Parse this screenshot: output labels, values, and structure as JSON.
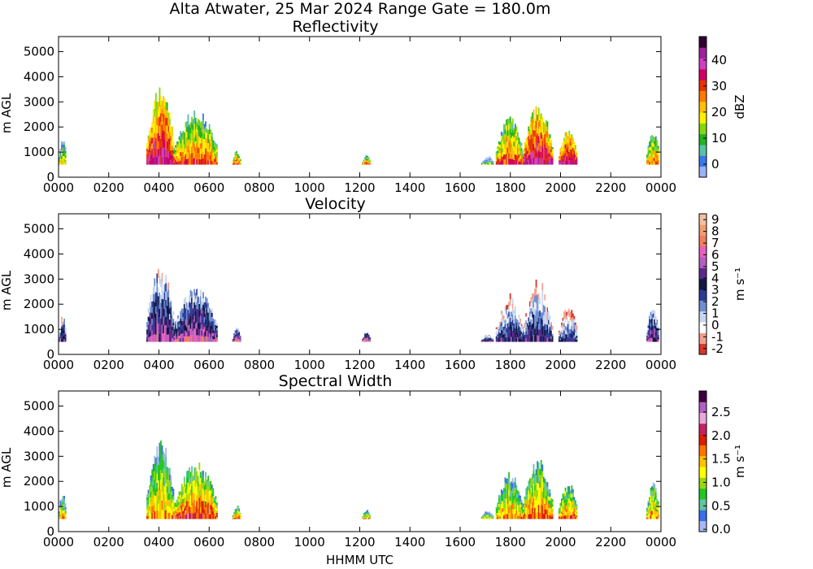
{
  "suptitle": "Alta Atwater, 25 Mar 2024 Range Gate = 180.0m",
  "colors": {
    "reflectivity": [
      "#9bb2f5",
      "#3a78ee",
      "#58c2a2",
      "#22b422",
      "#86d80e",
      "#fff000",
      "#ffc000",
      "#ff7a00",
      "#e83200",
      "#d00064",
      "#d040c0",
      "#a020a0",
      "#300030"
    ],
    "velocity": [
      "#d8382a",
      "#f4a090",
      "#ffffff",
      "#c8d6f0",
      "#6f8fd0",
      "#2b3c95",
      "#101840",
      "#5a2a8a",
      "#b060c0",
      "#e860c0",
      "#f08060",
      "#f0a070",
      "#f4c0a0"
    ],
    "width": [
      "#a8b8f0",
      "#3a70e8",
      "#64c4a0",
      "#22c822",
      "#9ad810",
      "#ffff00",
      "#ffc400",
      "#ff7400",
      "#dc2000",
      "#c82060",
      "#e8a8d8",
      "#b060c0",
      "#400040"
    ]
  },
  "chart_data": [
    {
      "type": "heatmap",
      "title": "Reflectivity",
      "xlabel": "",
      "ylabel": "m AGL",
      "xlim": [
        0,
        1440
      ],
      "ylim": [
        0,
        5600
      ],
      "x_ticks": [
        "0000",
        "0200",
        "0400",
        "0600",
        "0800",
        "1000",
        "1200",
        "1400",
        "1600",
        "1800",
        "2000",
        "2200",
        "0000"
      ],
      "y_ticks": [
        0,
        1000,
        2000,
        3000,
        4000,
        5000
      ],
      "colorbar": {
        "label": "dBZ",
        "range": [
          -5,
          49
        ],
        "ticks": [
          "0",
          "10",
          "20",
          "30",
          "40"
        ]
      },
      "echoes": [
        {
          "t_start": 0,
          "t_end": 18,
          "top": 1500,
          "level": 0.25
        },
        {
          "t_start": 210,
          "t_end": 275,
          "top": 3400,
          "level": 0.55
        },
        {
          "t_start": 275,
          "t_end": 380,
          "top": 2500,
          "level": 0.4
        },
        {
          "t_start": 415,
          "t_end": 435,
          "top": 1000,
          "level": 0.4
        },
        {
          "t_start": 725,
          "t_end": 745,
          "top": 850,
          "level": 0.35
        },
        {
          "t_start": 1010,
          "t_end": 1040,
          "top": 800,
          "level": 0.1
        },
        {
          "t_start": 1045,
          "t_end": 1110,
          "top": 2200,
          "level": 0.4
        },
        {
          "t_start": 1110,
          "t_end": 1180,
          "top": 2700,
          "level": 0.55
        },
        {
          "t_start": 1195,
          "t_end": 1240,
          "top": 1800,
          "level": 0.55
        },
        {
          "t_start": 1405,
          "t_end": 1435,
          "top": 1800,
          "level": 0.35
        }
      ]
    },
    {
      "type": "heatmap",
      "title": "Velocity",
      "xlabel": "",
      "ylabel": "m AGL",
      "xlim": [
        0,
        1440
      ],
      "ylim": [
        0,
        5600
      ],
      "x_ticks": [
        "0000",
        "0200",
        "0400",
        "0600",
        "0800",
        "1000",
        "1200",
        "1400",
        "1600",
        "1800",
        "2000",
        "2200",
        "0000"
      ],
      "y_ticks": [
        0,
        1000,
        2000,
        3000,
        4000,
        5000
      ],
      "colorbar": {
        "label": "m s⁻¹",
        "range": [
          -2.5,
          9.5
        ],
        "ticks": [
          "-2",
          "-1",
          "0",
          "1",
          "2",
          "3",
          "4",
          "5",
          "6",
          "7",
          "8",
          "9"
        ]
      },
      "echoes": [
        {
          "t_start": 0,
          "t_end": 18,
          "top": 1500,
          "level": 0.35
        },
        {
          "t_start": 210,
          "t_end": 275,
          "top": 3400,
          "level": 0.4
        },
        {
          "t_start": 275,
          "t_end": 380,
          "top": 2500,
          "level": 0.45
        },
        {
          "t_start": 415,
          "t_end": 435,
          "top": 1000,
          "level": 0.5
        },
        {
          "t_start": 725,
          "t_end": 745,
          "top": 850,
          "level": 0.55
        },
        {
          "t_start": 1010,
          "t_end": 1040,
          "top": 800,
          "level": 0.35
        },
        {
          "t_start": 1045,
          "t_end": 1110,
          "top": 2200,
          "level": 0.3
        },
        {
          "t_start": 1110,
          "t_end": 1180,
          "top": 2700,
          "level": 0.3
        },
        {
          "t_start": 1195,
          "t_end": 1240,
          "top": 1800,
          "level": 0.25
        },
        {
          "t_start": 1405,
          "t_end": 1435,
          "top": 1800,
          "level": 0.4
        }
      ]
    },
    {
      "type": "heatmap",
      "title": "Spectral Width",
      "xlabel": "HHMM UTC",
      "ylabel": "m AGL",
      "xlim": [
        0,
        1440
      ],
      "ylim": [
        0,
        5600
      ],
      "x_ticks": [
        "0000",
        "0200",
        "0400",
        "0600",
        "0800",
        "1000",
        "1200",
        "1400",
        "1600",
        "1800",
        "2000",
        "2200",
        "0000"
      ],
      "y_ticks": [
        0,
        1000,
        2000,
        3000,
        4000,
        5000
      ],
      "colorbar": {
        "label": "m s⁻¹",
        "range": [
          -0.05,
          2.95
        ],
        "ticks": [
          "0.0",
          "0.5",
          "1.0",
          "1.5",
          "2.0",
          "2.5"
        ]
      },
      "echoes": [
        {
          "t_start": 0,
          "t_end": 18,
          "top": 1500,
          "level": 0.25
        },
        {
          "t_start": 210,
          "t_end": 275,
          "top": 3400,
          "level": 0.3
        },
        {
          "t_start": 275,
          "t_end": 380,
          "top": 2500,
          "level": 0.4
        },
        {
          "t_start": 415,
          "t_end": 435,
          "top": 1000,
          "level": 0.35
        },
        {
          "t_start": 725,
          "t_end": 745,
          "top": 850,
          "level": 0.3
        },
        {
          "t_start": 1010,
          "t_end": 1040,
          "top": 800,
          "level": 0.2
        },
        {
          "t_start": 1045,
          "t_end": 1110,
          "top": 2200,
          "level": 0.3
        },
        {
          "t_start": 1110,
          "t_end": 1180,
          "top": 2700,
          "level": 0.35
        },
        {
          "t_start": 1195,
          "t_end": 1240,
          "top": 1800,
          "level": 0.35
        },
        {
          "t_start": 1405,
          "t_end": 1435,
          "top": 1800,
          "level": 0.3
        }
      ]
    }
  ]
}
